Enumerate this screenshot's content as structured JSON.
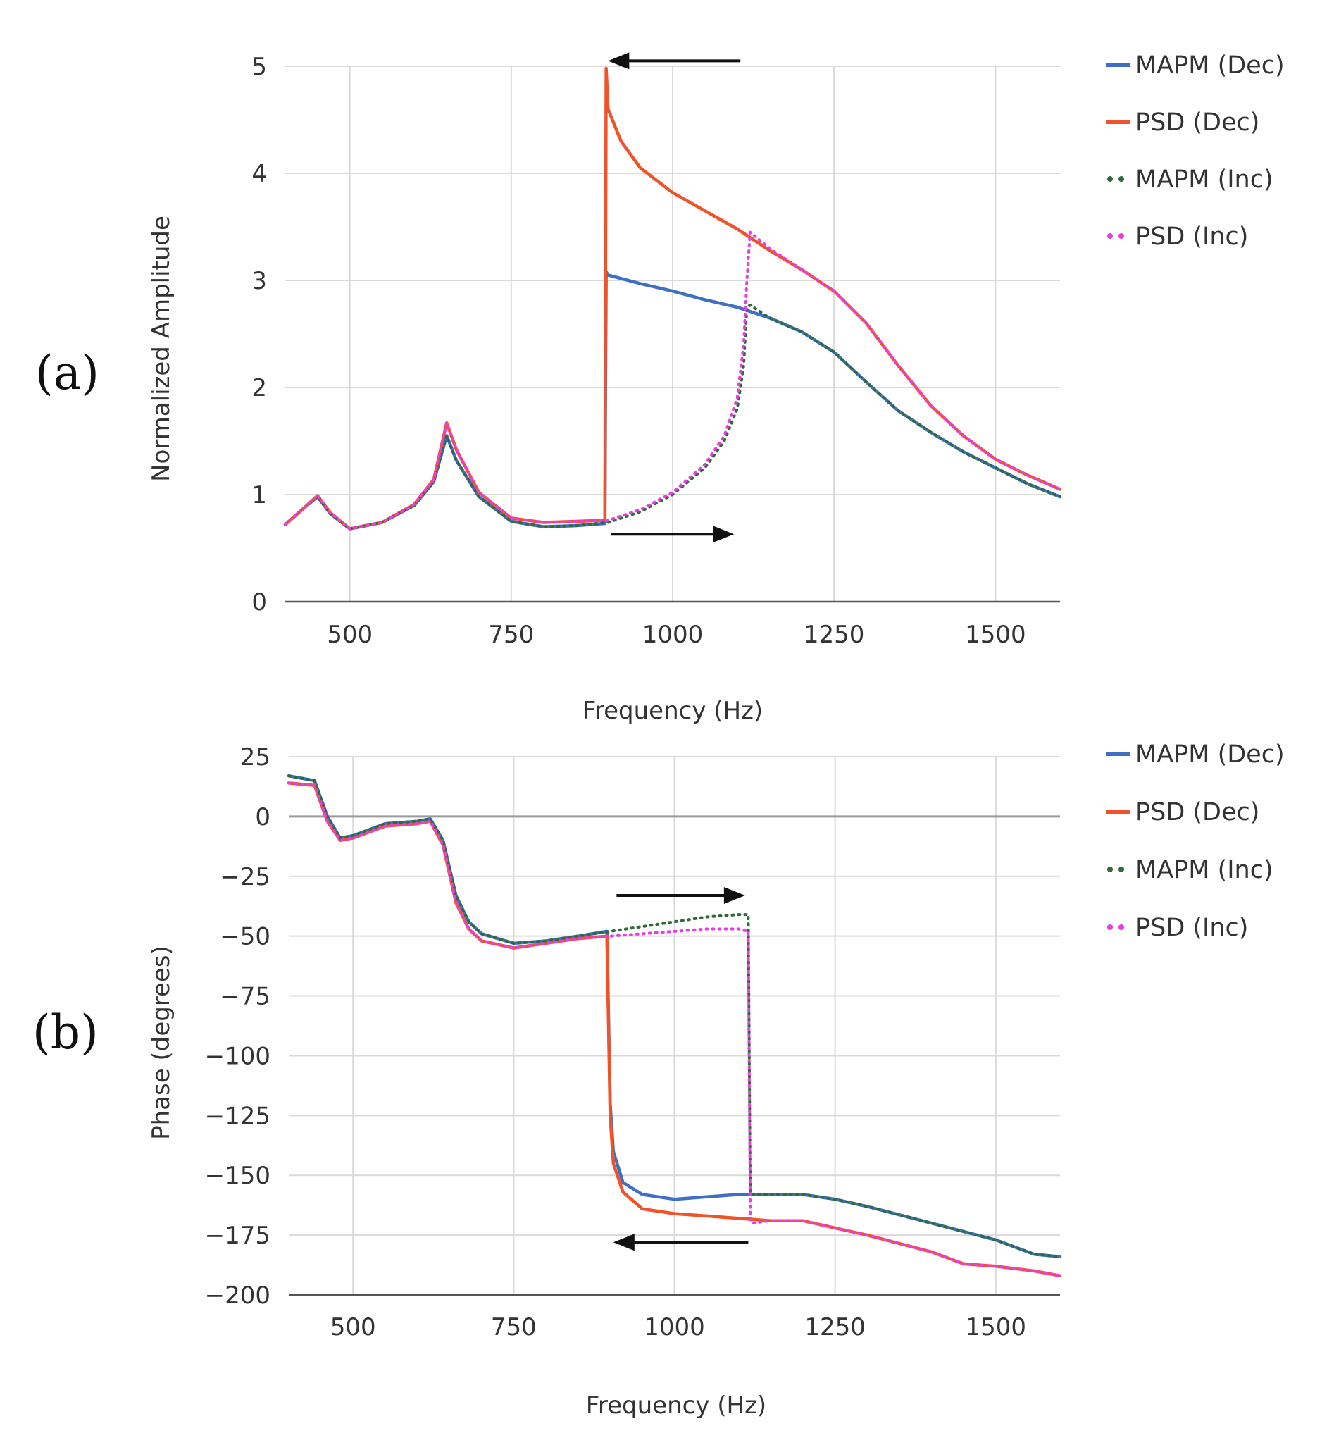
{
  "chart_data": [
    {
      "type": "line",
      "panel_label": "(a)",
      "title": "",
      "xlabel": "Frequency (Hz)",
      "ylabel": "Normalized Amplitude",
      "xlim": [
        400,
        1600
      ],
      "ylim": [
        0,
        5
      ],
      "xticks": [
        500,
        750,
        1000,
        1250,
        1500
      ],
      "yticks": [
        0,
        1,
        2,
        3,
        4,
        5
      ],
      "ytick_labels": [
        "0",
        "1",
        "2",
        "3",
        "4",
        "5"
      ],
      "grid": true,
      "legend_position": "right",
      "annotations": [
        {
          "type": "arrow",
          "direction": "left",
          "near_x": [
            900,
            1105
          ],
          "near_y": 5.05
        },
        {
          "type": "arrow",
          "direction": "right",
          "near_x": [
            905,
            1095
          ],
          "near_y": 0.63
        }
      ],
      "series": [
        {
          "name": "MAPM (Dec)",
          "color": "#3d6fc4",
          "style": "solid",
          "x": [
            400,
            430,
            450,
            470,
            500,
            550,
            600,
            630,
            650,
            665,
            700,
            750,
            800,
            850,
            895,
            897,
            900,
            950,
            1000,
            1050,
            1100,
            1150,
            1200,
            1250,
            1300,
            1350,
            1400,
            1450,
            1500,
            1550,
            1600
          ],
          "y": [
            0.72,
            0.88,
            0.98,
            0.82,
            0.68,
            0.74,
            0.9,
            1.12,
            1.55,
            1.32,
            0.98,
            0.75,
            0.7,
            0.71,
            0.73,
            3.08,
            3.05,
            2.97,
            2.9,
            2.82,
            2.75,
            2.65,
            2.52,
            2.33,
            2.05,
            1.78,
            1.58,
            1.4,
            1.25,
            1.1,
            0.98
          ]
        },
        {
          "name": "PSD (Dec)",
          "color": "#f0532a",
          "style": "solid",
          "x": [
            400,
            430,
            450,
            470,
            500,
            550,
            600,
            630,
            650,
            665,
            700,
            750,
            800,
            850,
            895,
            897,
            900,
            920,
            950,
            1000,
            1050,
            1100,
            1150,
            1200,
            1250,
            1300,
            1350,
            1400,
            1450,
            1500,
            1550,
            1600
          ],
          "y": [
            0.72,
            0.88,
            0.99,
            0.83,
            0.68,
            0.74,
            0.91,
            1.14,
            1.67,
            1.42,
            1.02,
            0.78,
            0.74,
            0.75,
            0.76,
            4.98,
            4.6,
            4.3,
            4.05,
            3.82,
            3.65,
            3.48,
            3.28,
            3.1,
            2.9,
            2.6,
            2.2,
            1.83,
            1.55,
            1.33,
            1.18,
            1.05
          ]
        },
        {
          "name": "MAPM (Inc)",
          "color": "#2e6b3a",
          "style": "dotted",
          "x": [
            400,
            430,
            450,
            470,
            500,
            550,
            600,
            630,
            650,
            665,
            700,
            750,
            800,
            850,
            900,
            950,
            1000,
            1050,
            1080,
            1100,
            1110,
            1115,
            1120,
            1150,
            1200,
            1250,
            1300,
            1350,
            1400,
            1450,
            1500,
            1550,
            1600
          ],
          "y": [
            0.72,
            0.88,
            0.98,
            0.82,
            0.68,
            0.74,
            0.9,
            1.12,
            1.55,
            1.32,
            0.98,
            0.75,
            0.7,
            0.71,
            0.74,
            0.84,
            1.0,
            1.25,
            1.5,
            1.8,
            2.2,
            2.75,
            2.77,
            2.65,
            2.52,
            2.33,
            2.05,
            1.78,
            1.58,
            1.4,
            1.25,
            1.1,
            0.98
          ]
        },
        {
          "name": "PSD (Inc)",
          "color": "#e83ee0",
          "style": "dotted",
          "x": [
            400,
            430,
            450,
            470,
            500,
            550,
            600,
            630,
            650,
            665,
            700,
            750,
            800,
            850,
            900,
            950,
            1000,
            1050,
            1080,
            1100,
            1110,
            1115,
            1120,
            1150,
            1200,
            1250,
            1300,
            1350,
            1400,
            1450,
            1500,
            1550,
            1600
          ],
          "y": [
            0.72,
            0.88,
            0.99,
            0.83,
            0.68,
            0.74,
            0.91,
            1.14,
            1.67,
            1.42,
            1.02,
            0.78,
            0.74,
            0.75,
            0.76,
            0.86,
            1.02,
            1.28,
            1.55,
            1.9,
            2.4,
            3.0,
            3.45,
            3.3,
            3.1,
            2.9,
            2.6,
            2.2,
            1.83,
            1.55,
            1.33,
            1.18,
            1.05
          ]
        }
      ]
    },
    {
      "type": "line",
      "panel_label": "(b)",
      "title": "",
      "xlabel": "Frequency (Hz)",
      "ylabel": "Phase (degrees)",
      "xlim": [
        400,
        1600
      ],
      "ylim": [
        -200,
        25
      ],
      "xticks": [
        500,
        750,
        1000,
        1250,
        1500
      ],
      "yticks": [
        25,
        0,
        -25,
        -50,
        -75,
        -100,
        -125,
        -150,
        -175,
        -200
      ],
      "ytick_labels": [
        "25",
        "0",
        "−25",
        "−50",
        "−75",
        "−100",
        "−125",
        "−150",
        "−175",
        "−200"
      ],
      "grid": true,
      "legend_position": "right",
      "annotations": [
        {
          "type": "arrow",
          "direction": "right",
          "near_x": [
            910,
            1110
          ],
          "near_y": -33
        },
        {
          "type": "arrow",
          "direction": "left",
          "near_x": [
            905,
            1115
          ],
          "near_y": -178
        }
      ],
      "series": [
        {
          "name": "MAPM (Dec)",
          "color": "#3d6fc4",
          "style": "solid",
          "x": [
            400,
            440,
            460,
            480,
            500,
            550,
            600,
            620,
            640,
            660,
            680,
            700,
            750,
            800,
            850,
            895,
            900,
            905,
            920,
            950,
            1000,
            1050,
            1100,
            1150,
            1200,
            1250,
            1300,
            1400,
            1500,
            1560,
            1600
          ],
          "y": [
            17,
            15,
            0,
            -9,
            -8,
            -3,
            -2,
            -1,
            -10,
            -33,
            -44,
            -49,
            -53,
            -52,
            -50,
            -48,
            -120,
            -140,
            -153,
            -158,
            -160,
            -159,
            -158,
            -158,
            -158,
            -160,
            -163,
            -170,
            -177,
            -183,
            -184
          ]
        },
        {
          "name": "PSD (Dec)",
          "color": "#f0532a",
          "style": "solid",
          "x": [
            400,
            440,
            460,
            480,
            500,
            550,
            600,
            620,
            640,
            660,
            680,
            700,
            750,
            800,
            850,
            895,
            900,
            905,
            920,
            950,
            1000,
            1050,
            1100,
            1150,
            1200,
            1250,
            1300,
            1400,
            1450,
            1500,
            1560,
            1600
          ],
          "y": [
            14,
            13,
            -2,
            -10,
            -9,
            -4,
            -3,
            -2,
            -12,
            -36,
            -47,
            -52,
            -55,
            -53,
            -51,
            -50,
            -125,
            -145,
            -157,
            -164,
            -166,
            -167,
            -168,
            -169,
            -169,
            -172,
            -175,
            -182,
            -187,
            -188,
            -190,
            -192
          ]
        },
        {
          "name": "MAPM (Inc)",
          "color": "#2e6b3a",
          "style": "dotted",
          "x": [
            400,
            440,
            460,
            480,
            500,
            550,
            600,
            620,
            640,
            660,
            680,
            700,
            750,
            800,
            850,
            900,
            950,
            1000,
            1050,
            1100,
            1115,
            1118,
            1120,
            1150,
            1200,
            1250,
            1300,
            1400,
            1500,
            1560,
            1600
          ],
          "y": [
            17,
            15,
            0,
            -9,
            -8,
            -3,
            -2,
            -1,
            -10,
            -33,
            -44,
            -49,
            -53,
            -52,
            -50,
            -48,
            -46,
            -44,
            -42,
            -41,
            -41,
            -158,
            -158,
            -158,
            -158,
            -160,
            -163,
            -170,
            -177,
            -183,
            -184
          ]
        },
        {
          "name": "PSD (Inc)",
          "color": "#e83ee0",
          "style": "dotted",
          "x": [
            400,
            440,
            460,
            480,
            500,
            550,
            600,
            620,
            640,
            660,
            680,
            700,
            750,
            800,
            850,
            900,
            950,
            1000,
            1050,
            1100,
            1115,
            1118,
            1120,
            1150,
            1200,
            1250,
            1300,
            1400,
            1450,
            1500,
            1560,
            1600
          ],
          "y": [
            14,
            13,
            -2,
            -10,
            -9,
            -4,
            -3,
            -2,
            -12,
            -36,
            -47,
            -52,
            -55,
            -53,
            -51,
            -50,
            -49,
            -48,
            -47,
            -47,
            -48,
            -168,
            -170,
            -169,
            -169,
            -172,
            -175,
            -182,
            -187,
            -188,
            -190,
            -192
          ]
        }
      ]
    }
  ]
}
